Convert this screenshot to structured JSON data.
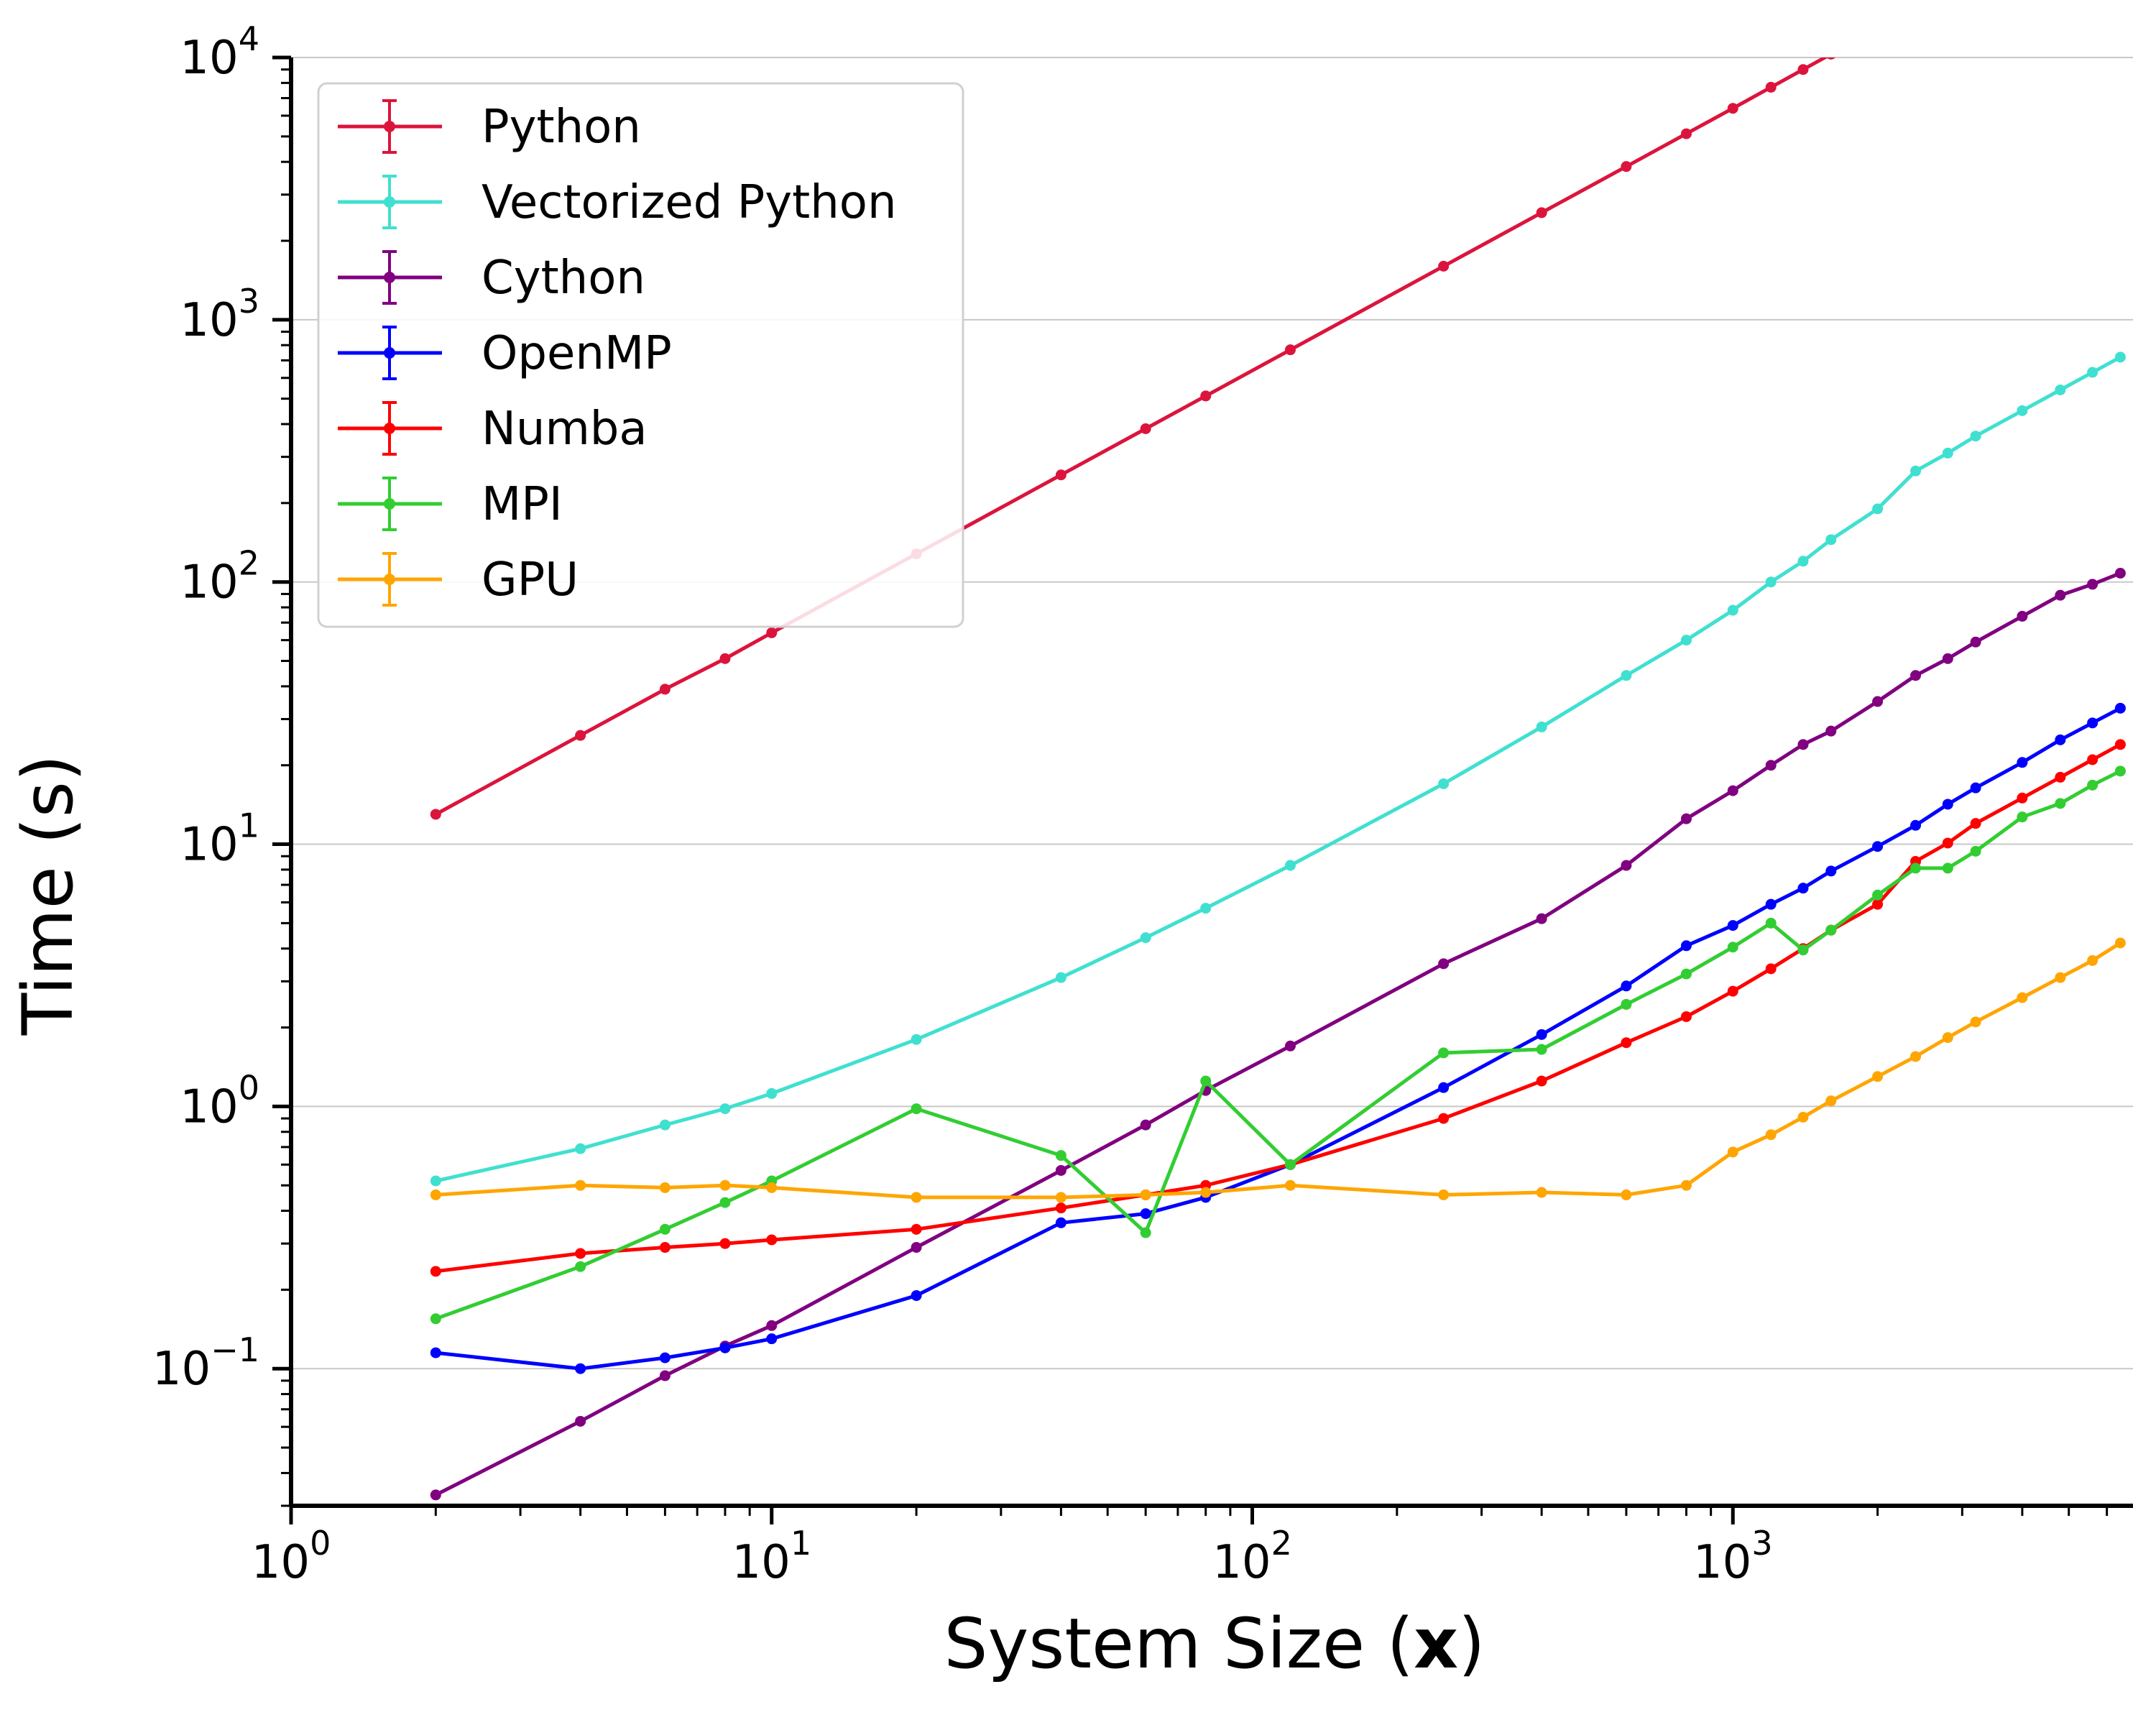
{
  "chart_data": {
    "type": "line",
    "xlabel_prefix": "System Size (",
    "xlabel_bold": "x",
    "xlabel_suffix": ")",
    "ylabel": "Time (s)",
    "xscale": "log",
    "yscale": "log",
    "xlim": [
      1,
      6800
    ],
    "ylim": [
      0.03,
      10000
    ],
    "x_ticks": [
      {
        "base": "10",
        "exp": "0"
      },
      {
        "base": "10",
        "exp": "1"
      },
      {
        "base": "10",
        "exp": "2"
      },
      {
        "base": "10",
        "exp": "3"
      }
    ],
    "y_ticks": [
      {
        "base": "10",
        "exp": "−1"
      },
      {
        "base": "10",
        "exp": "0"
      },
      {
        "base": "10",
        "exp": "1"
      },
      {
        "base": "10",
        "exp": "2"
      },
      {
        "base": "10",
        "exp": "3"
      },
      {
        "base": "10",
        "exp": "4"
      }
    ],
    "grid": "y-major",
    "legend_position": "top-left",
    "series": [
      {
        "name": "Python",
        "color": "#dc143c",
        "x": [
          2,
          4,
          6,
          8,
          10,
          20,
          40,
          60,
          80,
          120,
          250,
          400,
          600,
          800,
          1000,
          1200,
          1400,
          1600
        ],
        "y": [
          13,
          26,
          39,
          51,
          64,
          128,
          256,
          384,
          512,
          768,
          1600,
          2560,
          3840,
          5120,
          6400,
          7700,
          9000,
          10300
        ]
      },
      {
        "name": "Vectorized Python",
        "color": "#40e0d0",
        "x": [
          2,
          4,
          6,
          8,
          10,
          20,
          40,
          60,
          80,
          120,
          250,
          400,
          600,
          800,
          1000,
          1200,
          1400,
          1600,
          2000,
          2400,
          2800,
          3200,
          4000,
          4800,
          5600,
          6400
        ],
        "y": [
          0.52,
          0.69,
          0.85,
          0.98,
          1.12,
          1.8,
          3.1,
          4.4,
          5.7,
          8.3,
          17,
          28,
          44,
          60,
          78,
          100,
          120,
          145,
          190,
          265,
          310,
          360,
          450,
          540,
          630,
          720
        ]
      },
      {
        "name": "Cython",
        "color": "#800080",
        "x": [
          2,
          4,
          6,
          8,
          10,
          20,
          40,
          60,
          80,
          120,
          250,
          400,
          600,
          800,
          1000,
          1200,
          1400,
          1600,
          2000,
          2400,
          2800,
          3200,
          4000,
          4800,
          5600,
          6400
        ],
        "y": [
          0.033,
          0.063,
          0.094,
          0.122,
          0.146,
          0.29,
          0.57,
          0.85,
          1.15,
          1.7,
          3.5,
          5.2,
          8.3,
          12.5,
          16,
          20,
          24,
          27,
          35,
          44,
          51,
          59,
          74,
          89,
          98,
          108
        ]
      },
      {
        "name": "OpenMP",
        "color": "#0000ff",
        "x": [
          2,
          4,
          6,
          8,
          10,
          20,
          40,
          60,
          80,
          120,
          250,
          400,
          600,
          800,
          1000,
          1200,
          1400,
          1600,
          2000,
          2400,
          2800,
          3200,
          4000,
          4800,
          5600,
          6400
        ],
        "y": [
          0.115,
          0.1,
          0.11,
          0.12,
          0.13,
          0.19,
          0.36,
          0.39,
          0.45,
          0.6,
          1.18,
          1.88,
          2.88,
          4.1,
          4.9,
          5.9,
          6.8,
          7.9,
          9.8,
          11.8,
          14.2,
          16.4,
          20.5,
          25,
          29,
          33
        ]
      },
      {
        "name": "Numba",
        "color": "#ff0000",
        "x": [
          2,
          4,
          6,
          8,
          10,
          20,
          40,
          60,
          80,
          120,
          250,
          400,
          600,
          800,
          1000,
          1200,
          1400,
          1600,
          2000,
          2400,
          2800,
          3200,
          4000,
          4800,
          5600,
          6400
        ],
        "y": [
          0.235,
          0.275,
          0.29,
          0.3,
          0.31,
          0.34,
          0.41,
          0.46,
          0.5,
          0.6,
          0.9,
          1.25,
          1.75,
          2.2,
          2.75,
          3.35,
          4.0,
          4.7,
          5.9,
          8.6,
          10.1,
          12,
          15,
          18,
          21,
          24
        ]
      },
      {
        "name": "MPI",
        "color": "#32cd32",
        "x": [
          2,
          4,
          6,
          8,
          10,
          20,
          40,
          60,
          80,
          120,
          250,
          400,
          600,
          800,
          1000,
          1200,
          1400,
          1600,
          2000,
          2400,
          2800,
          3200,
          4000,
          4800,
          5600,
          6400
        ],
        "y": [
          0.155,
          0.245,
          0.34,
          0.43,
          0.52,
          0.98,
          0.65,
          0.33,
          1.25,
          0.6,
          1.6,
          1.65,
          2.45,
          3.2,
          4.05,
          5.0,
          3.95,
          4.7,
          6.4,
          8.1,
          8.1,
          9.4,
          12.7,
          14.3,
          16.8,
          19
        ]
      },
      {
        "name": "GPU",
        "color": "#ffa500",
        "x": [
          2,
          4,
          6,
          8,
          10,
          20,
          40,
          60,
          80,
          120,
          250,
          400,
          600,
          800,
          1000,
          1200,
          1400,
          1600,
          2000,
          2400,
          2800,
          3200,
          4000,
          4800,
          5600,
          6400
        ],
        "y": [
          0.46,
          0.5,
          0.49,
          0.5,
          0.49,
          0.45,
          0.45,
          0.46,
          0.47,
          0.5,
          0.46,
          0.47,
          0.46,
          0.5,
          0.67,
          0.78,
          0.91,
          1.05,
          1.3,
          1.55,
          1.83,
          2.1,
          2.6,
          3.1,
          3.6,
          4.2
        ]
      }
    ]
  }
}
